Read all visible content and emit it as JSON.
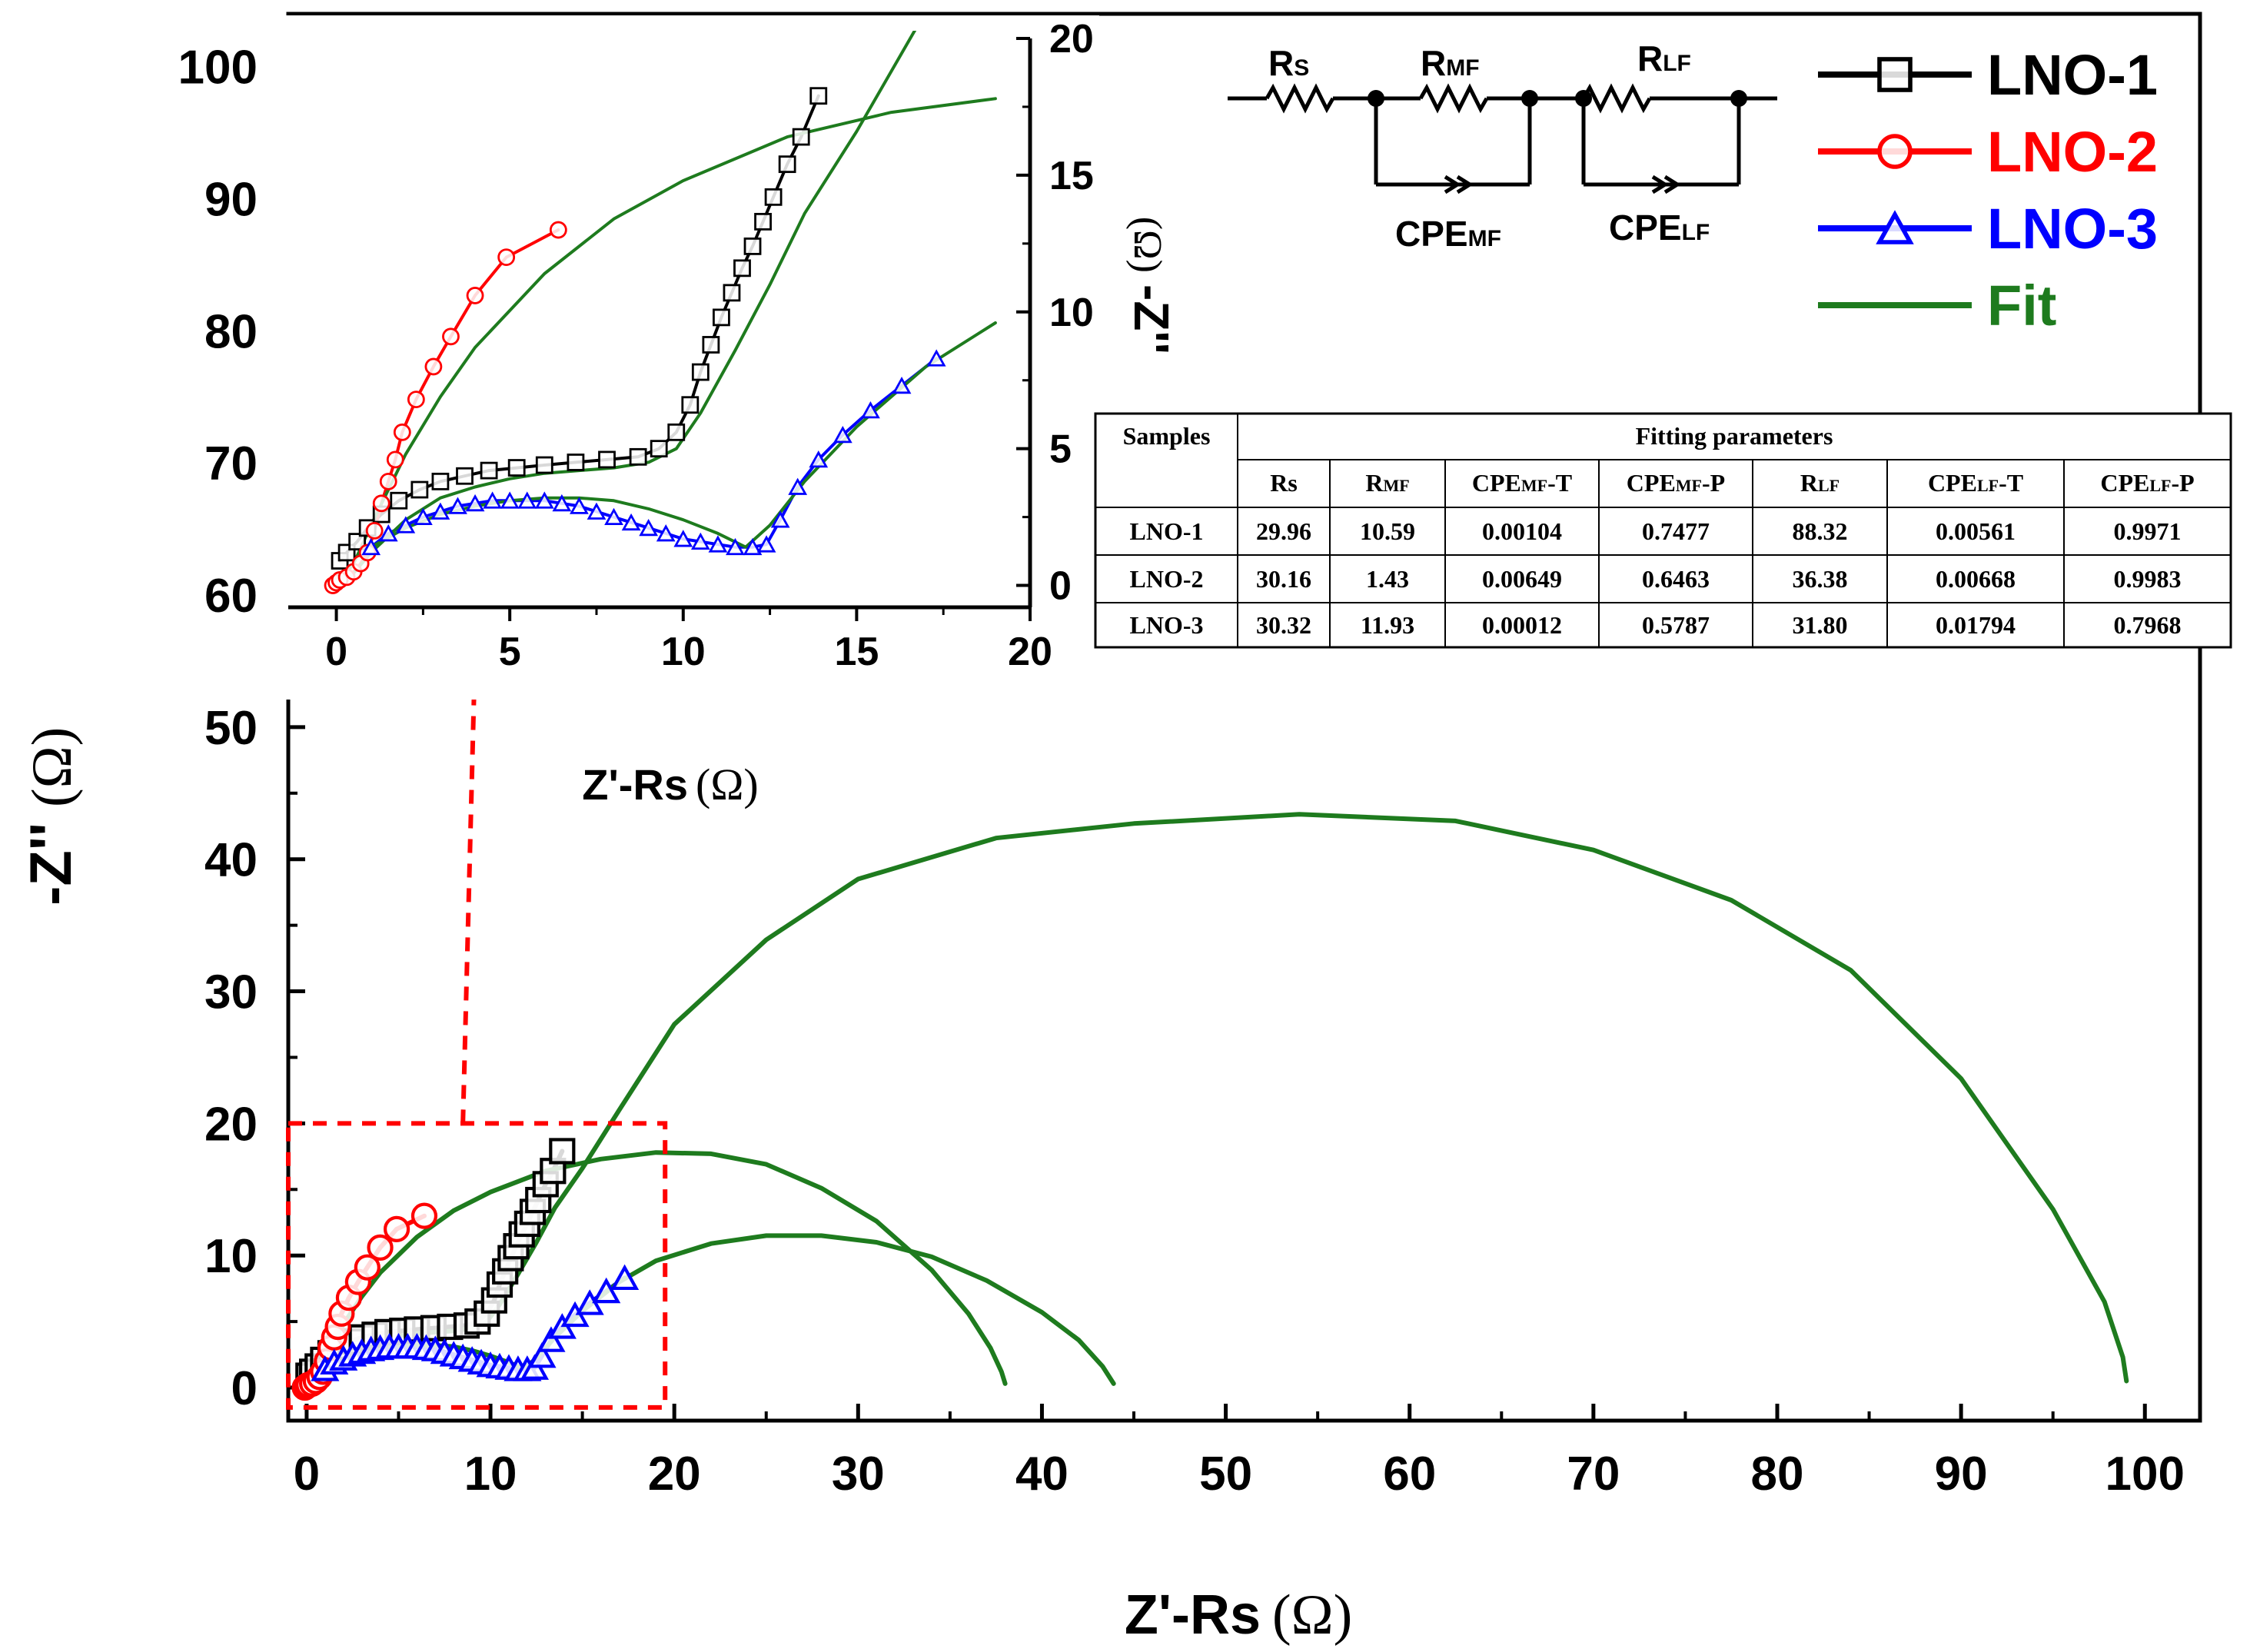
{
  "chart_data": {
    "type": "scatter",
    "title": "",
    "main_axes": {
      "xlabel": "Z'-Rs",
      "xlabel_unit": "(Ω)",
      "ylabel": "-Z''",
      "ylabel_unit": "(Ω)",
      "xlim": [
        -1,
        103
      ],
      "ylim": [
        -2.5,
        104
      ],
      "xticks": [
        0,
        10,
        20,
        30,
        40,
        50,
        60,
        70,
        80,
        90,
        100
      ],
      "yticks": [
        0,
        10,
        20,
        30,
        40,
        50,
        60,
        70,
        80,
        90,
        100
      ],
      "zoom_box": {
        "x": [
          -1,
          19.5
        ],
        "y": [
          -1.5,
          20
        ]
      }
    },
    "inset_axes": {
      "xlabel": "Z'-Rs",
      "xlabel_unit": "(Ω)",
      "ylabel": "-Z''",
      "ylabel_unit": "(Ω)",
      "xlim": [
        -0.5,
        20
      ],
      "ylim": [
        -0.8,
        20
      ],
      "xticks": [
        0,
        5,
        10,
        15,
        20
      ],
      "yticks": [
        0,
        5,
        10,
        15,
        20
      ]
    },
    "legend": {
      "position": "top-right",
      "entries": [
        {
          "label": "LNO-1",
          "color": "#000000",
          "marker": "square"
        },
        {
          "label": "LNO-2",
          "color": "#ff0000",
          "marker": "circle"
        },
        {
          "label": "LNO-3",
          "color": "#0000ff",
          "marker": "triangle"
        },
        {
          "label": "Fit",
          "color": "#1e7b1e",
          "marker": "none"
        }
      ]
    },
    "series": [
      {
        "name": "LNO-1",
        "color": "#000000",
        "marker": "square",
        "x": [
          0.1,
          0.3,
          0.6,
          0.9,
          1.3,
          1.8,
          2.4,
          3.0,
          3.7,
          4.4,
          5.2,
          6.0,
          6.9,
          7.8,
          8.7,
          9.3,
          9.8,
          10.2,
          10.5,
          10.8,
          11.1,
          11.4,
          11.7,
          12.0,
          12.3,
          12.6,
          13.0,
          13.4,
          13.9
        ],
        "y": [
          0.9,
          1.2,
          1.6,
          2.1,
          2.6,
          3.1,
          3.5,
          3.8,
          4.0,
          4.2,
          4.3,
          4.4,
          4.5,
          4.6,
          4.7,
          5.0,
          5.6,
          6.6,
          7.8,
          8.8,
          9.8,
          10.7,
          11.6,
          12.4,
          13.3,
          14.2,
          15.4,
          16.4,
          17.9
        ]
      },
      {
        "name": "LNO-2",
        "color": "#ff0000",
        "marker": "circle",
        "x": [
          -0.1,
          0.0,
          0.1,
          0.3,
          0.5,
          0.7,
          0.9,
          1.1,
          1.3,
          1.5,
          1.7,
          1.9,
          2.3,
          2.8,
          3.3,
          4.0,
          4.9,
          6.4
        ],
        "y": [
          0.0,
          0.1,
          0.2,
          0.3,
          0.5,
          0.8,
          1.2,
          2.0,
          3.0,
          3.8,
          4.6,
          5.6,
          6.8,
          8.0,
          9.1,
          10.6,
          12.0,
          13.0
        ]
      },
      {
        "name": "LNO-3",
        "color": "#0000ff",
        "marker": "triangle",
        "x": [
          1.0,
          1.5,
          2.0,
          2.5,
          3.0,
          3.5,
          4.0,
          4.5,
          5.0,
          5.5,
          6.0,
          6.5,
          7.0,
          7.5,
          8.0,
          8.5,
          9.0,
          9.5,
          10.0,
          10.5,
          11.0,
          11.5,
          12.0,
          12.4,
          12.8,
          13.3,
          13.9,
          14.6,
          15.4,
          16.3,
          17.3
        ],
        "y": [
          1.4,
          1.9,
          2.2,
          2.5,
          2.7,
          2.9,
          3.0,
          3.1,
          3.1,
          3.1,
          3.1,
          3.0,
          2.9,
          2.7,
          2.5,
          2.3,
          2.1,
          1.9,
          1.7,
          1.6,
          1.5,
          1.4,
          1.4,
          1.5,
          2.4,
          3.6,
          4.6,
          5.5,
          6.4,
          7.3,
          8.3
        ]
      },
      {
        "name": "Fit (LNO-1)",
        "color": "#1e7b1e",
        "marker": "none",
        "x": [
          0.4,
          1.0,
          2.0,
          3.0,
          4.0,
          5.0,
          6.0,
          7.0,
          8.0,
          9.0,
          9.8,
          10.5,
          11.5,
          12.5,
          13.5,
          15.0,
          17.0,
          20.0,
          25.0,
          30.0,
          37.5,
          45.0,
          54.0,
          62.5,
          70.0,
          77.5,
          84.0,
          90.0,
          95.0,
          97.8,
          98.8,
          99.0
        ],
        "y": [
          0.3,
          1.2,
          2.4,
          3.2,
          3.6,
          3.9,
          4.1,
          4.2,
          4.3,
          4.5,
          5.0,
          6.3,
          8.6,
          11.0,
          13.6,
          16.6,
          21.0,
          27.5,
          33.9,
          38.5,
          41.6,
          42.7,
          43.4,
          42.9,
          40.7,
          36.9,
          31.6,
          23.4,
          13.5,
          6.5,
          2.3,
          0.5
        ]
      },
      {
        "name": "Fit (LNO-2)",
        "color": "#1e7b1e",
        "marker": "none",
        "x": [
          0.0,
          0.5,
          1.0,
          2.0,
          3.0,
          4.0,
          6.0,
          8.0,
          10.0,
          13.0,
          16.0,
          19.0,
          22.0,
          25.0,
          28.0,
          31.0,
          34.0,
          36.0,
          37.2,
          37.8,
          38.0
        ],
        "y": [
          0.0,
          0.8,
          2.2,
          4.8,
          6.9,
          8.7,
          11.4,
          13.4,
          14.8,
          16.4,
          17.3,
          17.8,
          17.7,
          16.9,
          15.1,
          12.6,
          8.9,
          5.6,
          3.0,
          1.2,
          0.3
        ]
      },
      {
        "name": "Fit (LNO-3)",
        "color": "#1e7b1e",
        "marker": "none",
        "x": [
          1.0,
          2.0,
          3.0,
          4.0,
          5.0,
          6.0,
          7.0,
          8.0,
          9.0,
          10.0,
          11.0,
          11.8,
          12.5,
          13.5,
          15.0,
          17.0,
          19.0,
          22.0,
          25.0,
          28.0,
          31.0,
          34.0,
          37.0,
          40.0,
          42.0,
          43.3,
          43.9
        ],
        "y": [
          1.4,
          2.1,
          2.6,
          2.9,
          3.1,
          3.2,
          3.2,
          3.1,
          2.8,
          2.4,
          1.9,
          1.4,
          2.2,
          3.8,
          5.8,
          8.0,
          9.6,
          10.9,
          11.5,
          11.5,
          11.0,
          9.9,
          8.1,
          5.7,
          3.6,
          1.6,
          0.3
        ]
      }
    ],
    "arrow": {
      "from": [
        8.5,
        20
      ],
      "to_inset": [
        4.0,
        -0.8
      ]
    }
  },
  "circuit": {
    "elements": {
      "rs": {
        "main": "R",
        "sub": "S"
      },
      "rmf": {
        "main": "R",
        "sub": "MF"
      },
      "rlf": {
        "main": "R",
        "sub": "LF"
      },
      "cpemf": {
        "main": "CPE",
        "sub": "MF"
      },
      "cpelf": {
        "main": "CPE",
        "sub": "LF"
      }
    }
  },
  "fit_table": {
    "header_samples": "Samples",
    "header_group": "Fitting parameters",
    "columns": [
      {
        "main": "Rs",
        "sub": ""
      },
      {
        "main": "R",
        "sub": "MF"
      },
      {
        "main": "CPE",
        "sub": "MF",
        "suffix": "-T"
      },
      {
        "main": "CPE",
        "sub": "MF",
        "suffix": "-P"
      },
      {
        "main": "R",
        "sub": "LF"
      },
      {
        "main": "CPE",
        "sub": "LF",
        "suffix": "-T"
      },
      {
        "main": "CPE",
        "sub": "LF",
        "suffix": "-P"
      }
    ],
    "rows": [
      {
        "sample": "LNO-1",
        "values": [
          "29.96",
          "10.59",
          "0.00104",
          "0.7477",
          "88.32",
          "0.00561",
          "0.9971"
        ]
      },
      {
        "sample": "LNO-2",
        "values": [
          "30.16",
          "1.43",
          "0.00649",
          "0.6463",
          "36.38",
          "0.00668",
          "0.9983"
        ]
      },
      {
        "sample": "LNO-3",
        "values": [
          "30.32",
          "11.93",
          "0.00012",
          "0.5787",
          "31.80",
          "0.01794",
          "0.7968"
        ]
      }
    ]
  }
}
